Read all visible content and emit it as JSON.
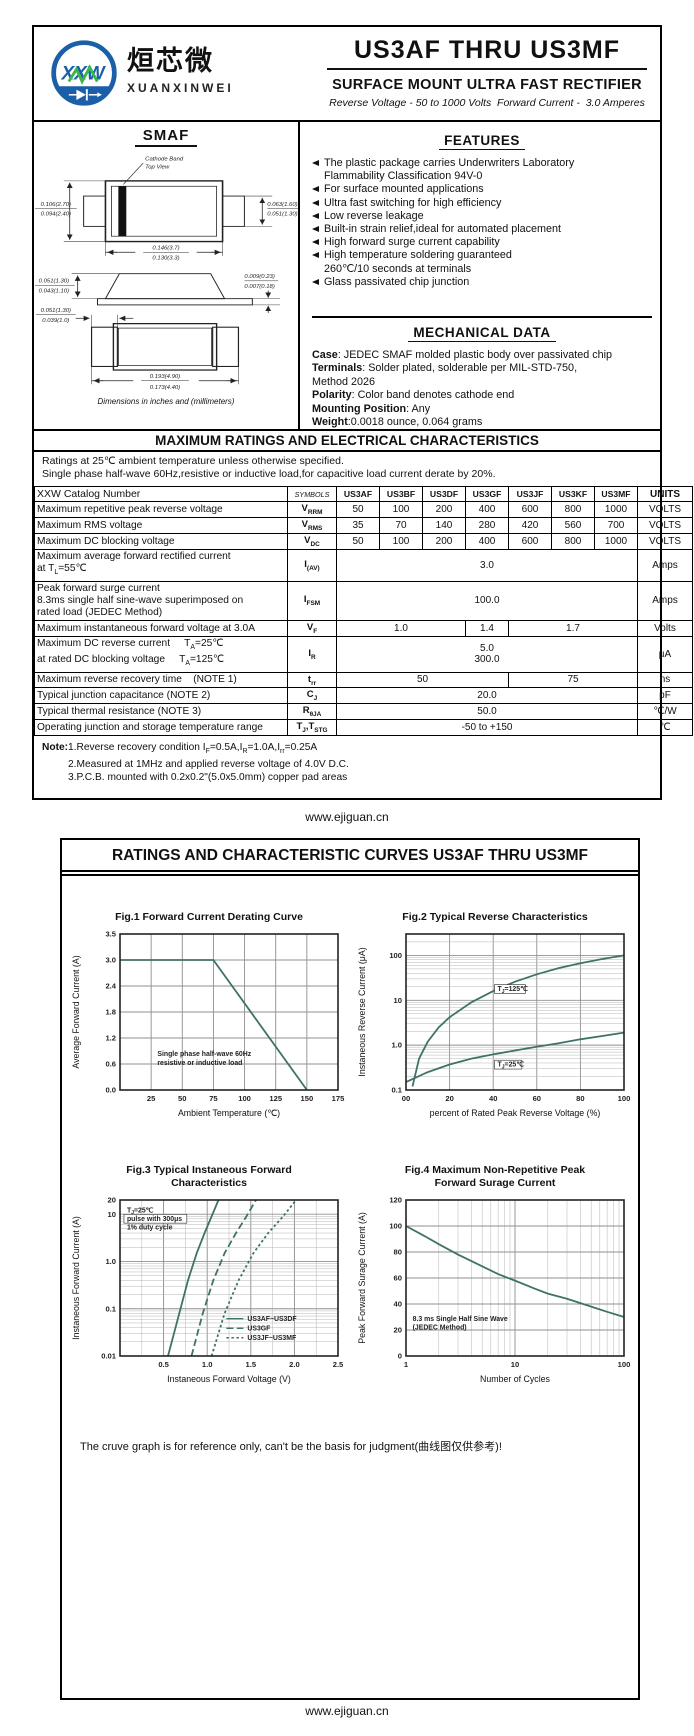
{
  "colors": {
    "curve": "#3f7268",
    "grid": "#8f8f8f",
    "grid_minor": "#b5b5b5",
    "logo_blue": "#1a5fa8",
    "logo_green": "#3cb54a"
  },
  "page1": {
    "logo": {
      "xxw": "XXW",
      "cn": "烜芯微",
      "en": "XUANXINWEI"
    },
    "title": "US3AF THRU US3MF",
    "subtitle": "SURFACE MOUNT ULTRA FAST RECTIFIER",
    "tagline": "Reverse Voltage - 50 to 1000 Volts  Forward Current -  3.0 Amperes",
    "package": {
      "name": "SMAF",
      "cathode_line1": "Cathode Band",
      "cathode_line2": "Top View",
      "caption": "Dimensions in inches and (millimeters)",
      "dims": {
        "top_left_u": "0.106(2.70)",
        "top_left_l": "0.094(2.40)",
        "top_right_u": "0.063(1.60)",
        "top_right_l": "0.051(1.30)",
        "top_width_u": "0.146(3.7)",
        "top_width_l": "0.130(3.3)",
        "side_left_u": "0.051(1.30)",
        "side_left_l": "0.043(1.10)",
        "side_right_u": "0.009(0.23)",
        "side_right_l": "0.007(0.18)",
        "pad_u": "0.051(1.30)",
        "pad_l": "0.039(1.0)",
        "bottom_width_u": "0.193(4.90)",
        "bottom_width_l": "0.173(4.40)"
      }
    },
    "features": {
      "heading": "FEATURES",
      "items": [
        {
          "lines": [
            "The plastic package carries Underwriters Laboratory",
            "Flammability Classification 94V-0"
          ]
        },
        {
          "lines": [
            "For surface mounted applications"
          ]
        },
        {
          "lines": [
            "Ultra fast switching for high efficiency"
          ]
        },
        {
          "lines": [
            "Low reverse leakage"
          ]
        },
        {
          "lines": [
            "Built-in strain relief,ideal for automated placement"
          ]
        },
        {
          "lines": [
            "High forward surge current capability"
          ]
        },
        {
          "lines": [
            "High temperature soldering guaranteed",
            "260℃/10 seconds at terminals"
          ]
        },
        {
          "lines": [
            "Glass passivated chip junction"
          ]
        }
      ]
    },
    "mechanical": {
      "heading": "MECHANICAL DATA",
      "rows": [
        {
          "b": "Case",
          "t": ": JEDEC SMAF molded plastic body over passivated chip"
        },
        {
          "b": "Terminals",
          "t": ": Solder plated, solderable per MIL-STD-750,"
        },
        {
          "b": "",
          "t": "Method 2026"
        },
        {
          "b": "Polarity",
          "t": ": Color band denotes cathode end"
        },
        {
          "b": "Mounting Position",
          "t": ": Any"
        },
        {
          "b": "Weight",
          "t": ":0.0018 ounce, 0.064 grams"
        }
      ]
    },
    "ratings": {
      "heading": "MAXIMUM RATINGS AND ELECTRICAL CHARACTERISTICS",
      "intro": [
        "Ratings at 25℃ ambient temperature unless otherwise specified.",
        "Single phase half-wave 60Hz,resistive or inductive load,for capacitive load current derate by 20%."
      ],
      "table": {
        "header": [
          "XXW Catalog  Number",
          "SYMBOLS",
          "US3AF",
          "US3BF",
          "US3DF",
          "US3GF",
          "US3JF",
          "US3KF",
          "US3MF",
          "UNITS"
        ],
        "rows": [
          {
            "param": [
              "Maximum repetitive peak reverse voltage"
            ],
            "sym": "V~RRM~",
            "vals": [
              {
                "t": "50"
              },
              {
                "t": "100"
              },
              {
                "t": "200"
              },
              {
                "t": "400"
              },
              {
                "t": "600"
              },
              {
                "t": "800"
              },
              {
                "t": "1000"
              }
            ],
            "unit": "VOLTS"
          },
          {
            "param": [
              "Maximum RMS voltage"
            ],
            "sym": "V~RMS~",
            "vals": [
              {
                "t": "35"
              },
              {
                "t": "70"
              },
              {
                "t": "140"
              },
              {
                "t": "280"
              },
              {
                "t": "420"
              },
              {
                "t": "560"
              },
              {
                "t": "700"
              }
            ],
            "unit": "VOLTS"
          },
          {
            "param": [
              "Maximum DC blocking voltage"
            ],
            "sym": "V~DC~",
            "vals": [
              {
                "t": "50"
              },
              {
                "t": "100"
              },
              {
                "t": "200"
              },
              {
                "t": "400"
              },
              {
                "t": "600"
              },
              {
                "t": "800"
              },
              {
                "t": "1000"
              }
            ],
            "unit": "VOLTS"
          },
          {
            "param": [
              "Maximum average forward rectified current",
              "at T~L~=55℃"
            ],
            "sym": "I~(AV)~",
            "vals": [
              {
                "t": "3.0",
                "span": 7
              }
            ],
            "unit": "Amps"
          },
          {
            "param": [
              "Peak forward surge current",
              "8.3ms single half sine-wave superimposed on",
              "rated load (JEDEC Method)"
            ],
            "sym": "I~FSM~",
            "vals": [
              {
                "t": "100.0",
                "span": 7
              }
            ],
            "unit": "Amps"
          },
          {
            "param": [
              "Maximum instantaneous forward voltage at 3.0A"
            ],
            "sym": "V~F~",
            "vals": [
              {
                "t": "1.0",
                "span": 3
              },
              {
                "t": "1.4",
                "span": 1
              },
              {
                "t": "1.7",
                "span": 3
              }
            ],
            "unit": "Volts"
          },
          {
            "param": [
              "Maximum DC reverse current     T~A~=25℃",
              "at rated DC blocking voltage     T~A~=125℃"
            ],
            "sym": "I~R~",
            "vals": [
              {
                "lines": [
                  "5.0",
                  "300.0"
                ],
                "span": 7
              }
            ],
            "unit": "μA"
          },
          {
            "param": [
              "Maximum reverse recovery time    (NOTE 1)"
            ],
            "sym": "t~rr~",
            "vals": [
              {
                "t": "50",
                "span": 4
              },
              {
                "t": "75",
                "span": 3
              }
            ],
            "unit": "ns"
          },
          {
            "param": [
              "Typical junction capacitance (NOTE 2)"
            ],
            "sym": "C~J~",
            "vals": [
              {
                "t": "20.0",
                "span": 7
              }
            ],
            "unit": "pF"
          },
          {
            "param": [
              "Typical thermal resistance (NOTE 3)"
            ],
            "sym": "R~θJA~",
            "vals": [
              {
                "t": "50.0",
                "span": 7
              }
            ],
            "unit": "℃/W"
          },
          {
            "param": [
              "Operating junction and storage temperature range"
            ],
            "sym": "T~J~,T~STG~",
            "vals": [
              {
                "t": "-50 to +150",
                "span": 7
              }
            ],
            "unit": "℃"
          }
        ]
      },
      "notes": {
        "label": "Note:",
        "items": [
          "1.Reverse recovery condition I~F~=0.5A,I~R~=1.0A,I~rr~=0.25A",
          "2.Measured at 1MHz and applied reverse voltage of 4.0V D.C.",
          "3.P.C.B. mounted with 0.2x0.2\"(5.0x5.0mm) copper pad areas"
        ]
      }
    },
    "site": "www.ejiguan.cn"
  },
  "page2": {
    "heading": "RATINGS AND CHARACTERISTIC CURVES US3AF THRU US3MF",
    "disclaimer": "The cruve graph is for reference only, can't be the basis for judgment(曲线图仅供参考)!",
    "site": "www.ejiguan.cn"
  },
  "chart_data": [
    {
      "id": "fig1",
      "type": "line",
      "title": [
        "Fig.1  Forward Current Derating Curve"
      ],
      "xlabel": "Ambient Temperature (℃)",
      "ylabel": "Average Forward Current  (A)",
      "x": {
        "scale": "linear",
        "min": 0,
        "max": 175,
        "ticks": [
          {
            "v": 25,
            "l": "25"
          },
          {
            "v": 50,
            "l": "50"
          },
          {
            "v": 75,
            "l": "75"
          },
          {
            "v": 100,
            "l": "100"
          },
          {
            "v": 125,
            "l": "125"
          },
          {
            "v": 150,
            "l": "150"
          },
          {
            "v": 175,
            "l": "175"
          }
        ]
      },
      "y": {
        "scale": "piecewise",
        "ticks": [
          {
            "v": 0.0,
            "l": "0.0"
          },
          {
            "v": 0.6,
            "l": "0.6"
          },
          {
            "v": 1.2,
            "l": "1.2"
          },
          {
            "v": 1.8,
            "l": "1.8"
          },
          {
            "v": 2.4,
            "l": "2.4"
          },
          {
            "v": 3.0,
            "l": "3.0"
          },
          {
            "v": 3.5,
            "l": "3.5"
          }
        ]
      },
      "series": [
        {
          "name": "US3AF-US3MF",
          "dash": "solid",
          "points": [
            [
              0,
              3.0
            ],
            [
              75,
              3.0
            ],
            [
              150,
              0.0
            ]
          ]
        }
      ],
      "annotations": [
        {
          "lines": [
            "Single phase half-wave 60Hz",
            "resistive or inductive load"
          ],
          "x": 30,
          "y": 0.78
        }
      ]
    },
    {
      "id": "fig2",
      "type": "line",
      "title": [
        "Fig.2  Typical Reverse Characteristics"
      ],
      "xlabel": "percent of Rated  Peak Reverse Voltage (%)",
      "ylabel": "Instaneous Reverse Current (μA)",
      "x": {
        "scale": "linear",
        "min": 0,
        "max": 100,
        "ticks": [
          {
            "v": 0,
            "l": "00"
          },
          {
            "v": 20,
            "l": "20"
          },
          {
            "v": 40,
            "l": "40"
          },
          {
            "v": 60,
            "l": "60"
          },
          {
            "v": 80,
            "l": "80"
          },
          {
            "v": 100,
            "l": "100"
          }
        ]
      },
      "y": {
        "scale": "log",
        "min": 0.1,
        "max": 300,
        "ticks": [
          {
            "v": 100,
            "l": "100"
          },
          {
            "v": 10,
            "l": "10"
          },
          {
            "v": 1,
            "l": "1.0"
          },
          {
            "v": 0.1,
            "l": "0.1"
          }
        ]
      },
      "series": [
        {
          "name": "TJ=125C",
          "dash": "solid",
          "points": [
            [
              3,
              0.12
            ],
            [
              6,
              0.5
            ],
            [
              10,
              1.2
            ],
            [
              15,
              2.5
            ],
            [
              20,
              4.2
            ],
            [
              30,
              9
            ],
            [
              40,
              16
            ],
            [
              50,
              26
            ],
            [
              60,
              38
            ],
            [
              70,
              52
            ],
            [
              80,
              67
            ],
            [
              90,
              83
            ],
            [
              100,
              100
            ]
          ]
        },
        {
          "name": "TJ=25C",
          "dash": "solid",
          "points": [
            [
              0,
              0.15
            ],
            [
              10,
              0.25
            ],
            [
              20,
              0.37
            ],
            [
              30,
              0.5
            ],
            [
              40,
              0.62
            ],
            [
              50,
              0.76
            ],
            [
              60,
              0.92
            ],
            [
              70,
              1.1
            ],
            [
              80,
              1.35
            ],
            [
              90,
              1.6
            ],
            [
              100,
              1.9
            ]
          ]
        }
      ],
      "annotations": [
        {
          "lines": [
            "T~J~=125℃"
          ],
          "x": 42,
          "y": 16,
          "box": [
            0
          ]
        },
        {
          "lines": [
            "T~J~=25℃"
          ],
          "x": 42,
          "y": 0.33,
          "box": [
            0
          ]
        }
      ]
    },
    {
      "id": "fig3",
      "type": "line",
      "title": [
        "Fig.3  Typical Instaneous Forward",
        "Characteristics"
      ],
      "xlabel": "Instaneous Forward Voltage (V)",
      "ylabel": "Instaneous Forward Current (A)",
      "x": {
        "scale": "linear",
        "min": 0,
        "max": 2.5,
        "minor_step": 0.25,
        "ticks": [
          {
            "v": 0.5,
            "l": "0.5"
          },
          {
            "v": 1.0,
            "l": "1.0"
          },
          {
            "v": 1.5,
            "l": "1.5"
          },
          {
            "v": 2.0,
            "l": "2.0"
          },
          {
            "v": 2.5,
            "l": "2.5"
          }
        ]
      },
      "y": {
        "scale": "log",
        "min": 0.01,
        "max": 20,
        "ticks": [
          {
            "v": 20,
            "l": "20"
          },
          {
            "v": 10,
            "l": "10"
          },
          {
            "v": 1,
            "l": "1.0"
          },
          {
            "v": 0.1,
            "l": "0.1"
          },
          {
            "v": 0.01,
            "l": "0.01"
          }
        ]
      },
      "series": [
        {
          "name": "US3AF~US3DF",
          "dash": "solid",
          "points": [
            [
              0.55,
              0.01
            ],
            [
              0.68,
              0.08
            ],
            [
              0.78,
              0.4
            ],
            [
              0.88,
              1.5
            ],
            [
              0.97,
              4
            ],
            [
              1.05,
              9
            ],
            [
              1.13,
              20
            ]
          ]
        },
        {
          "name": "US3GF",
          "dash": "7,3.5",
          "points": [
            [
              0.82,
              0.01
            ],
            [
              0.95,
              0.08
            ],
            [
              1.07,
              0.4
            ],
            [
              1.2,
              1.5
            ],
            [
              1.33,
              4
            ],
            [
              1.45,
              9
            ],
            [
              1.56,
              20
            ]
          ]
        },
        {
          "name": "US3JF~US3MF",
          "dash": "2.5,2.5",
          "points": [
            [
              1.05,
              0.01
            ],
            [
              1.2,
              0.08
            ],
            [
              1.36,
              0.4
            ],
            [
              1.53,
              1.5
            ],
            [
              1.7,
              4
            ],
            [
              1.87,
              9
            ],
            [
              2.02,
              20
            ]
          ]
        }
      ],
      "annotations": [
        {
          "lines": [
            "T~J~=25℃",
            "pulse with 300μs",
            "1% duty cycle"
          ],
          "x": 0.08,
          "y": 11,
          "box": [
            1
          ]
        }
      ],
      "legend": {
        "x": 1.22,
        "y": 0.055
      }
    },
    {
      "id": "fig4",
      "type": "line",
      "title": [
        "Fig.4  Maximum Non-Repetitive Peak",
        "Forward Surage Current"
      ],
      "xlabel": "Number of Cycles",
      "ylabel": "Peak Forward Surage Current (A)",
      "x": {
        "scale": "log",
        "min": 1,
        "max": 100,
        "ticks": [
          {
            "v": 1,
            "l": "1"
          },
          {
            "v": 10,
            "l": "10"
          },
          {
            "v": 100,
            "l": "100"
          }
        ]
      },
      "y": {
        "scale": "linear",
        "min": 0,
        "max": 120,
        "ticks": [
          {
            "v": 0,
            "l": "0"
          },
          {
            "v": 20,
            "l": "20"
          },
          {
            "v": 40,
            "l": "40"
          },
          {
            "v": 60,
            "l": "60"
          },
          {
            "v": 80,
            "l": "80"
          },
          {
            "v": 100,
            "l": "100"
          },
          {
            "v": 120,
            "l": "120"
          }
        ]
      },
      "series": [
        {
          "name": "surge",
          "dash": "solid",
          "points": [
            [
              1,
              100
            ],
            [
              1.5,
              92
            ],
            [
              2,
              86
            ],
            [
              3,
              78
            ],
            [
              5,
              69
            ],
            [
              7,
              63
            ],
            [
              10,
              58
            ],
            [
              15,
              52
            ],
            [
              20,
              48
            ],
            [
              30,
              44
            ],
            [
              50,
              38
            ],
            [
              70,
              34
            ],
            [
              100,
              30
            ]
          ]
        }
      ],
      "annotations": [
        {
          "lines": [
            "8.3 ms Single Half Sine Wave",
            "(JEDEC Method)"
          ],
          "x": 1.15,
          "y": 27
        }
      ]
    }
  ]
}
